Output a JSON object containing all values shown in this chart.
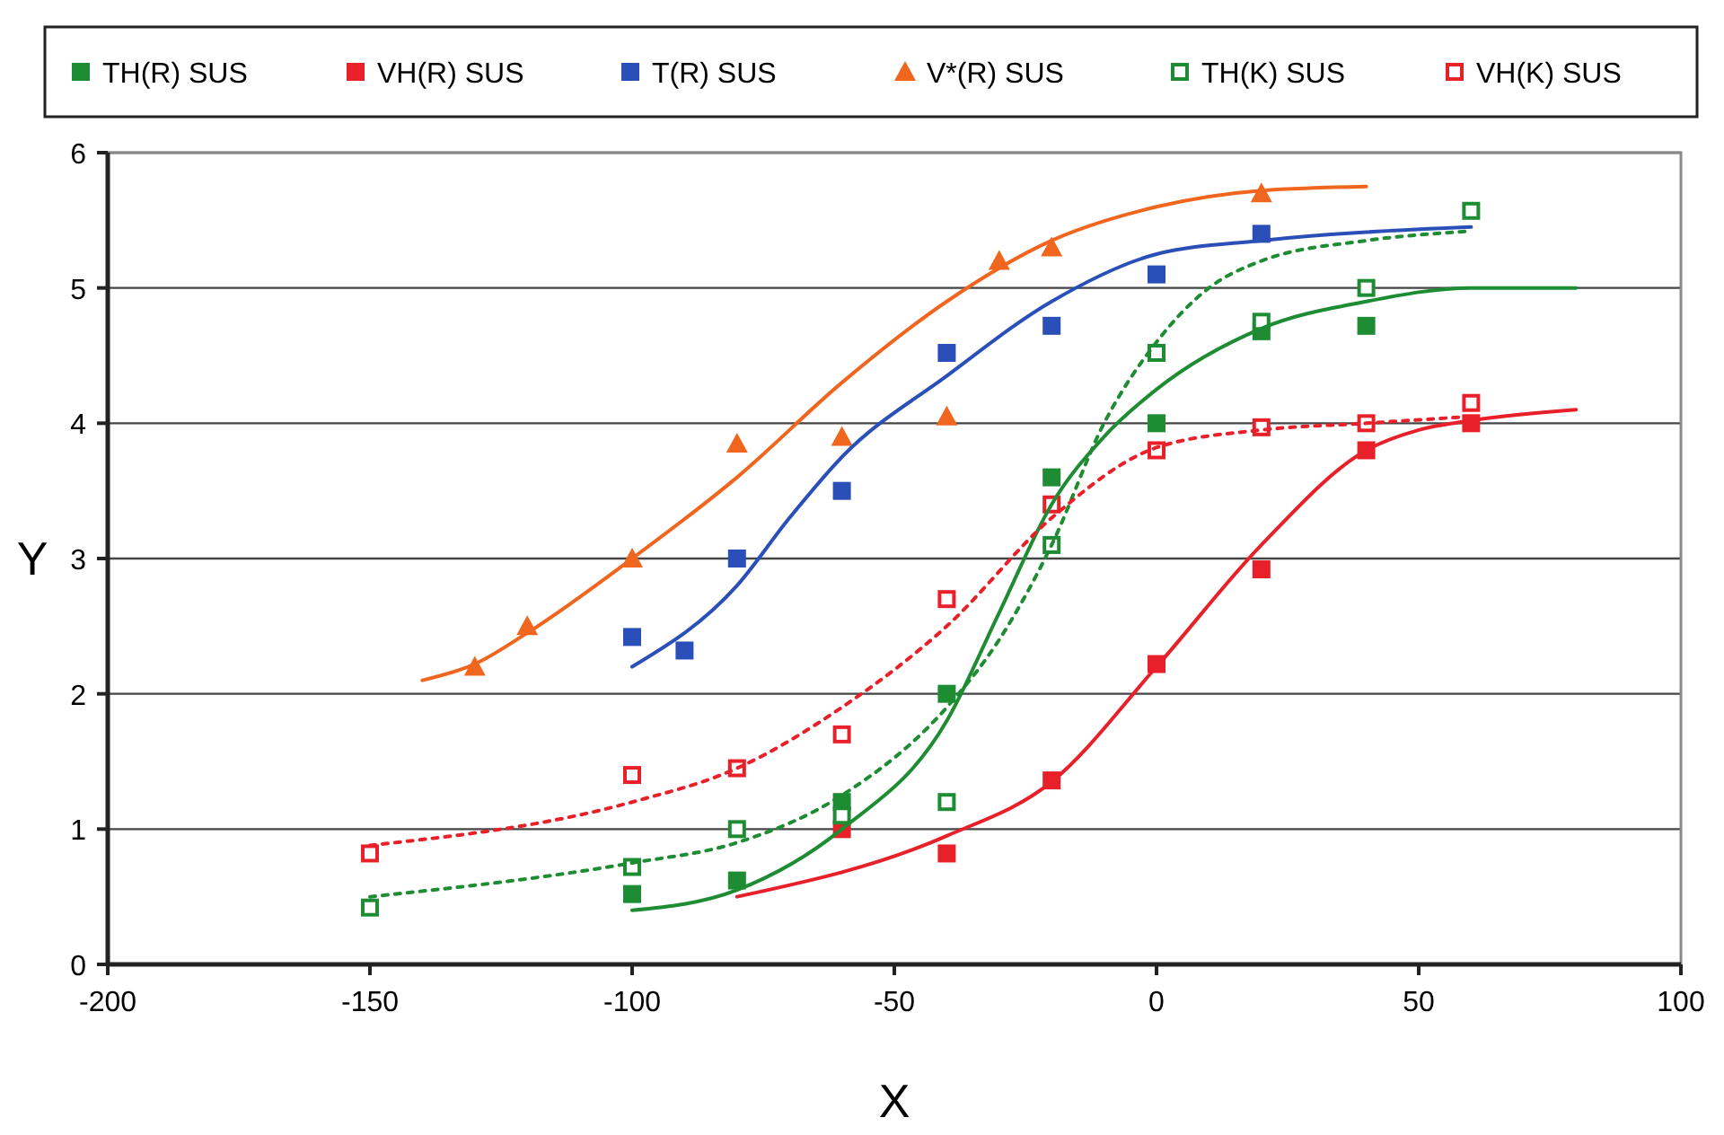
{
  "chart_data": {
    "type": "scatter",
    "xlabel": "X",
    "ylabel": "Y",
    "xlim": [
      -200,
      100
    ],
    "xticks": [
      -200,
      -150,
      -100,
      -50,
      0,
      50,
      100
    ],
    "ylim": [
      0,
      6
    ],
    "yticks": [
      0,
      1,
      2,
      3,
      4,
      5,
      6
    ],
    "grid": "y",
    "legend": "top",
    "series": [
      {
        "name": "TH(R) SUS",
        "color": "#1e8c32",
        "marker": "square",
        "x": [
          -100,
          -80,
          -60,
          -40,
          -20,
          0,
          20,
          40
        ],
        "values": [
          0.52,
          0.62,
          1.2,
          2.0,
          3.6,
          4.0,
          4.68,
          4.72
        ]
      },
      {
        "name": "VH(R) SUS",
        "color": "#e8202a",
        "marker": "square",
        "x": [
          -60,
          -40,
          -20,
          0,
          20,
          40,
          60
        ],
        "values": [
          1.0,
          0.82,
          1.36,
          2.22,
          2.92,
          3.8,
          4.0
        ]
      },
      {
        "name": "T(R) SUS",
        "color": "#2a4fb8",
        "marker": "square",
        "x": [
          -100,
          -90,
          -80,
          -60,
          -40,
          -20,
          0,
          20
        ],
        "values": [
          2.42,
          2.32,
          3.0,
          3.5,
          4.52,
          4.72,
          5.1,
          5.4
        ]
      },
      {
        "name": "V*(R) SUS",
        "color": "#f0661e",
        "marker": "triangle",
        "x": [
          -130,
          -120,
          -100,
          -80,
          -60,
          -40,
          -30,
          -20,
          20
        ],
        "values": [
          2.2,
          2.5,
          3.0,
          3.85,
          3.9,
          4.05,
          5.2,
          5.3,
          5.7
        ]
      },
      {
        "name": "TH(K) SUS",
        "color": "#1e8c32",
        "marker": "square-open",
        "x": [
          -150,
          -100,
          -80,
          -60,
          -40,
          -20,
          0,
          20,
          40,
          60
        ],
        "values": [
          0.42,
          0.72,
          1.0,
          1.1,
          1.2,
          3.1,
          4.52,
          4.75,
          5.0,
          5.57
        ]
      },
      {
        "name": "VH(K) SUS",
        "color": "#e8202a",
        "marker": "square-open",
        "x": [
          -150,
          -100,
          -80,
          -60,
          -40,
          -20,
          0,
          20,
          40,
          60
        ],
        "values": [
          0.82,
          1.4,
          1.45,
          1.7,
          2.7,
          3.4,
          3.8,
          3.97,
          4.0,
          4.15
        ]
      },
      {
        "type": "line",
        "color": "#1e8c32",
        "line_style": "solid",
        "x": [
          -100,
          -80,
          -60,
          -40,
          -30,
          -20,
          -10,
          0,
          20,
          40,
          60,
          80
        ],
        "values": [
          0.4,
          0.55,
          1.0,
          1.8,
          2.6,
          3.4,
          3.9,
          4.25,
          4.7,
          4.9,
          5.0,
          5.0
        ]
      },
      {
        "type": "line",
        "color": "#e8202a",
        "line_style": "solid",
        "x": [
          -80,
          -40,
          -20,
          0,
          20,
          40,
          50,
          60,
          80
        ],
        "values": [
          0.5,
          0.95,
          1.35,
          2.2,
          3.1,
          3.8,
          3.95,
          4.02,
          4.1
        ]
      },
      {
        "type": "line",
        "color": "#2a4fb8",
        "line_style": "solid",
        "x": [
          -100,
          -80,
          -70,
          -60,
          -40,
          -20,
          0,
          20,
          60
        ],
        "values": [
          2.2,
          2.8,
          3.3,
          3.75,
          4.35,
          4.9,
          5.25,
          5.35,
          5.45
        ]
      },
      {
        "type": "line",
        "color": "#f0661e",
        "line_style": "solid",
        "x": [
          -140,
          -130,
          -120,
          -100,
          -80,
          -60,
          -40,
          -20,
          0,
          20,
          40
        ],
        "values": [
          2.1,
          2.22,
          2.45,
          3.0,
          3.6,
          4.3,
          4.9,
          5.35,
          5.6,
          5.72,
          5.75
        ]
      },
      {
        "type": "line",
        "color": "#1e8c32",
        "line_style": "dotted",
        "x": [
          -150,
          -100,
          -80,
          -60,
          -40,
          -30,
          -20,
          -10,
          0,
          10,
          20,
          40,
          60
        ],
        "values": [
          0.5,
          0.75,
          0.9,
          1.25,
          1.9,
          2.4,
          3.1,
          4.0,
          4.6,
          5.0,
          5.2,
          5.35,
          5.42
        ]
      },
      {
        "type": "line",
        "color": "#e8202a",
        "line_style": "dotted",
        "x": [
          -150,
          -100,
          -80,
          -60,
          -40,
          -20,
          0,
          20,
          40,
          60
        ],
        "values": [
          0.88,
          1.2,
          1.45,
          1.9,
          2.5,
          3.3,
          3.82,
          3.95,
          4.0,
          4.05
        ]
      }
    ]
  }
}
